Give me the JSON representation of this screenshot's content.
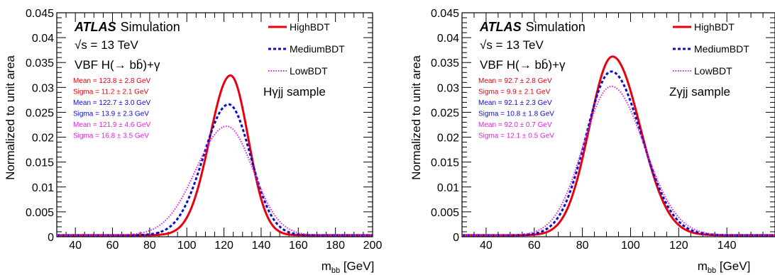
{
  "chart_data": [
    {
      "type": "line",
      "xlabel": "m_bb [GeV]",
      "ylabel": "Normalized to unit area",
      "xlim": [
        30,
        200
      ],
      "ylim": [
        0,
        0.045
      ],
      "xticks": [
        40,
        60,
        80,
        100,
        120,
        140,
        160,
        180,
        200
      ],
      "yticks": [
        0,
        0.005,
        0.01,
        0.015,
        0.02,
        0.025,
        0.03,
        0.035,
        0.04,
        0.045
      ],
      "ytick_labels": [
        "0",
        "0.005",
        "0.01",
        "0.015",
        "0.02",
        "0.025",
        "0.03",
        "0.035",
        "0.04",
        "0.045"
      ],
      "atlas_label": "ATLAS",
      "atlas_suffix": "Simulation",
      "energy": "√s = 13 TeV",
      "process": "VBF H(→ bb̄)+γ",
      "sample": "Hγjj sample",
      "legend_position": "top-right",
      "stats": [
        {
          "text": "Mean  =  123.8 ± 2.8 GeV",
          "color": "#e8000b"
        },
        {
          "text": "Sigma = 11.2 ± 2.1 GeV",
          "color": "#e8000b"
        },
        {
          "text": "Mean  =  122.7 ± 3.0 GeV",
          "color": "#0b0bd6"
        },
        {
          "text": "Sigma = 13.9 ± 2.3 GeV",
          "color": "#0b0bd6"
        },
        {
          "text": "Mean  =  121.9 ± 4.6 GeV",
          "color": "#e020e0"
        },
        {
          "text": "Sigma = 16.8 ± 3.5 GeV",
          "color": "#e020e0"
        }
      ],
      "series": [
        {
          "name": "HighBDT",
          "color": "#e8000b",
          "style": "solid",
          "peak_x": 123.5,
          "peak_y": 0.0324,
          "sigma_left": 11.2,
          "sigma_right": 9.6,
          "tail": 0.0003
        },
        {
          "name": "MediumBDT",
          "color": "#0b0bd6",
          "style": "dashed",
          "peak_x": 122.5,
          "peak_y": 0.0266,
          "sigma_left": 13.5,
          "sigma_right": 11.8,
          "tail": 0.0003
        },
        {
          "name": "LowBDT",
          "color": "#e020e0",
          "style": "dotted",
          "peak_x": 121.5,
          "peak_y": 0.0222,
          "sigma_left": 16.5,
          "sigma_right": 14.0,
          "tail": 0.0003
        }
      ]
    },
    {
      "type": "line",
      "xlabel": "m_bb [GeV]",
      "ylabel": "Normalized to unit area",
      "xlim": [
        30,
        160
      ],
      "ylim": [
        0,
        0.045
      ],
      "xticks": [
        40,
        60,
        80,
        100,
        120,
        140
      ],
      "yticks": [
        0,
        0.005,
        0.01,
        0.015,
        0.02,
        0.025,
        0.03,
        0.035,
        0.04,
        0.045
      ],
      "ytick_labels": [
        "0",
        "0.005",
        "0.01",
        "0.015",
        "0.02",
        "0.025",
        "0.03",
        "0.035",
        "0.04",
        "0.045"
      ],
      "atlas_label": "ATLAS",
      "atlas_suffix": "Simulation",
      "energy": "√s = 13 TeV",
      "process": "VBF H(→ bb̄)+γ",
      "sample": "Zγjj sample",
      "legend_position": "top-right",
      "stats": [
        {
          "text": "Mean  = 92.7 ± 2.8 GeV",
          "color": "#e8000b"
        },
        {
          "text": "Sigma = 9.9 ± 2.1 GeV",
          "color": "#e8000b"
        },
        {
          "text": "Mean  = 92.1 ± 2.3 GeV",
          "color": "#0b0bd6"
        },
        {
          "text": "Sigma = 10.8 ± 1.8 GeV",
          "color": "#0b0bd6"
        },
        {
          "text": "Mean  = 92.0 ± 0.7 GeV",
          "color": "#e020e0"
        },
        {
          "text": "Sigma = 12.1 ± 0.5 GeV",
          "color": "#e020e0"
        }
      ],
      "series": [
        {
          "name": "HighBDT",
          "color": "#e8000b",
          "style": "solid",
          "peak_x": 92.5,
          "peak_y": 0.0362,
          "sigma_left": 9.6,
          "sigma_right": 11.5,
          "tail": 0.0003
        },
        {
          "name": "MediumBDT",
          "color": "#0b0bd6",
          "style": "dashed",
          "peak_x": 92.0,
          "peak_y": 0.0332,
          "sigma_left": 10.5,
          "sigma_right": 12.6,
          "tail": 0.0003
        },
        {
          "name": "LowBDT",
          "color": "#e020e0",
          "style": "dotted",
          "peak_x": 92.0,
          "peak_y": 0.0302,
          "sigma_left": 11.6,
          "sigma_right": 13.6,
          "tail": 0.0003
        }
      ]
    }
  ]
}
